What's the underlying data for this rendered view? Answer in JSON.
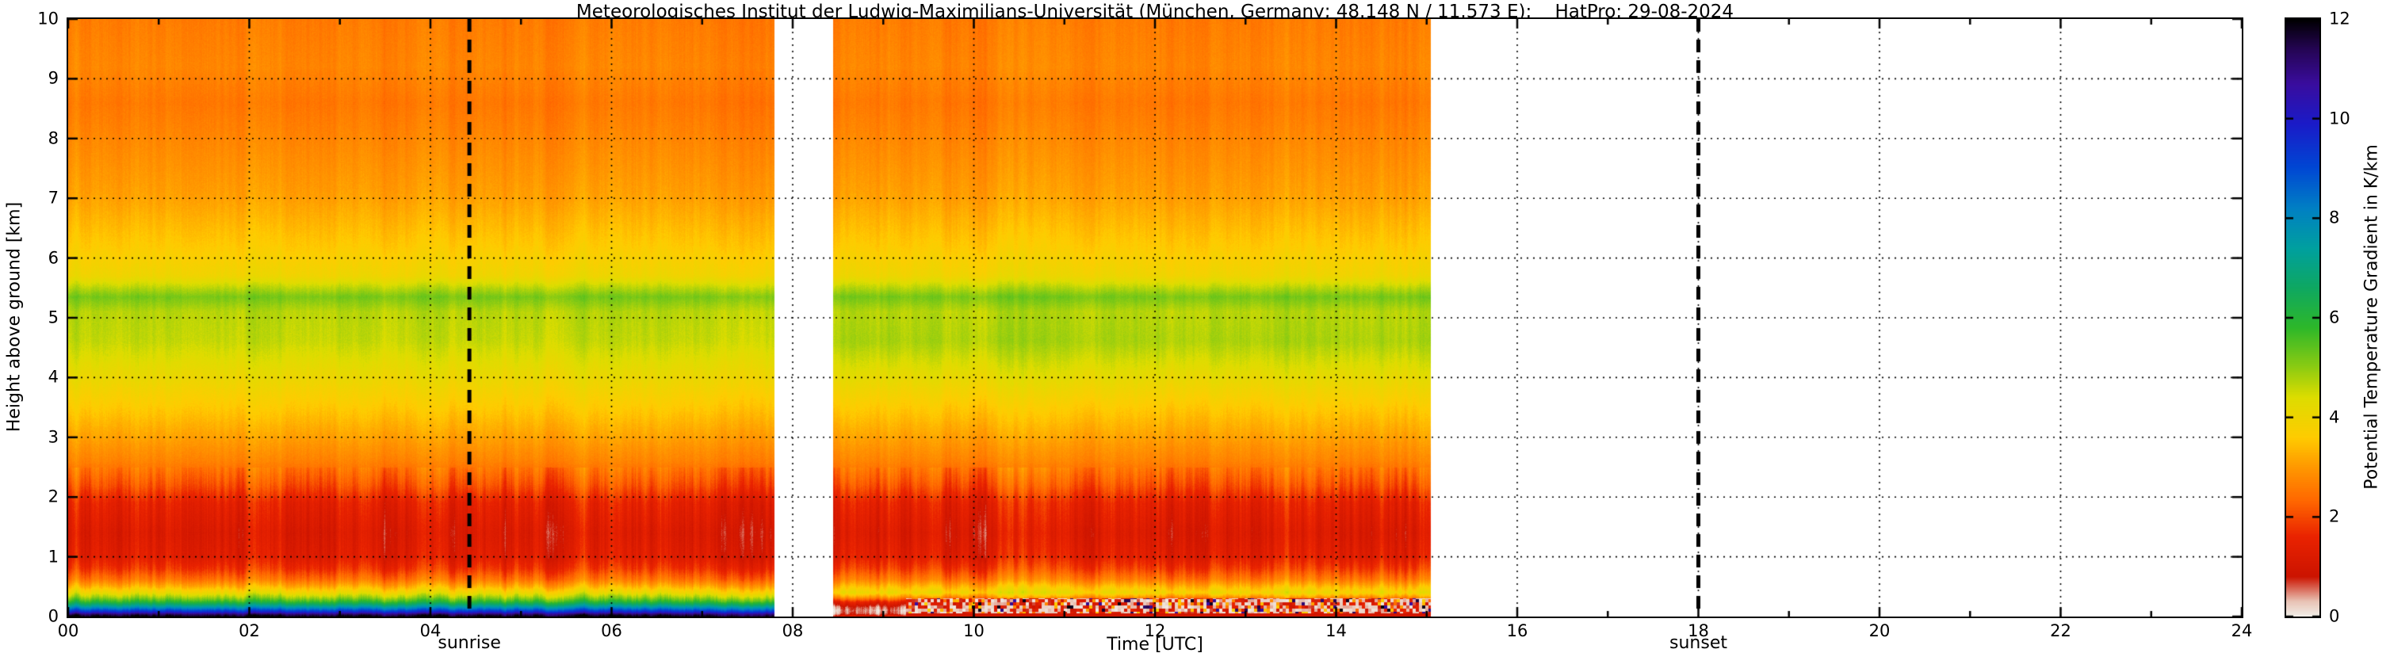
{
  "title": "Meteorologisches Institut der Ludwig-Maximilians-Universität (München, Germany; 48.148 N / 11.573 E):    HatPro: 29-08-2024",
  "chart_data": {
    "type": "heatmap",
    "title": "Meteorologisches Institut der Ludwig-Maximilians-Universität (München, Germany; 48.148 N / 11.573 E):    HatPro: 29-08-2024",
    "xlabel": "Time [UTC]",
    "ylabel": "Height above ground [km]",
    "colorbar_label": "Potential Temperature Gradient in K/km",
    "xlim": [
      0,
      24
    ],
    "ylim": [
      0,
      10
    ],
    "clim": [
      0,
      12
    ],
    "grid": {
      "style": "dotted",
      "color": "#000000"
    },
    "xticks": [
      0,
      2,
      4,
      6,
      8,
      10,
      12,
      14,
      16,
      18,
      20,
      22,
      24
    ],
    "xtick_labels": [
      "00",
      "02",
      "04",
      "06",
      "08",
      "10",
      "12",
      "14",
      "16",
      "18",
      "20",
      "22",
      "24"
    ],
    "yticks": [
      0,
      1,
      2,
      3,
      4,
      5,
      6,
      7,
      8,
      9,
      10
    ],
    "colorbar_ticks": [
      0,
      2,
      4,
      6,
      8,
      10,
      12
    ],
    "colormap_stops": [
      [
        0.0,
        "#f2efe9"
      ],
      [
        0.3,
        "#e9c4b6"
      ],
      [
        0.8,
        "#cc1400"
      ],
      [
        1.6,
        "#ea2300"
      ],
      [
        2.3,
        "#ff6600"
      ],
      [
        3.0,
        "#ff9900"
      ],
      [
        3.6,
        "#ffcc00"
      ],
      [
        4.4,
        "#dedd00"
      ],
      [
        5.0,
        "#8ecc12"
      ],
      [
        5.8,
        "#2eb82a"
      ],
      [
        6.6,
        "#0fa862"
      ],
      [
        7.4,
        "#00a0a0"
      ],
      [
        8.2,
        "#0080c4"
      ],
      [
        9.0,
        "#0048d4"
      ],
      [
        9.9,
        "#1b1bc8"
      ],
      [
        10.7,
        "#3a0d9e"
      ],
      [
        11.4,
        "#250553"
      ],
      [
        12.0,
        "#000000"
      ]
    ],
    "annotations": [
      {
        "label": "sunrise",
        "x": 4.43,
        "style": "dashed-vline"
      },
      {
        "label": "sunset",
        "x": 18.0,
        "style": "dashed-vline"
      }
    ],
    "segments": [
      {
        "t_start": 0.0,
        "t_end": 7.8,
        "heights": [
          0.0,
          0.04,
          0.08,
          0.13,
          0.18,
          0.25,
          0.32,
          0.4,
          0.5,
          0.62,
          0.8,
          1.0,
          1.4,
          1.9,
          2.2,
          2.6,
          3.0,
          3.5,
          4.0,
          4.6,
          5.1,
          5.35,
          5.7,
          6.2,
          7.0,
          8.0,
          8.6,
          9.2,
          10.0
        ],
        "values": [
          12.0,
          11.2,
          9.6,
          8.4,
          7.2,
          5.8,
          4.9,
          4.1,
          3.3,
          2.5,
          1.8,
          1.35,
          1.2,
          1.5,
          2.1,
          2.7,
          3.1,
          3.6,
          4.1,
          4.6,
          4.7,
          5.2,
          4.0,
          3.6,
          3.1,
          2.75,
          2.55,
          2.75,
          2.6
        ],
        "surface_speckle": false
      },
      {
        "t_start": 8.45,
        "t_end": 15.05,
        "heights": [
          0.0,
          0.05,
          0.1,
          0.16,
          0.24,
          0.32,
          0.4,
          0.5,
          0.62,
          0.8,
          1.0,
          1.4,
          1.9,
          2.2,
          2.6,
          3.0,
          3.5,
          4.0,
          4.6,
          5.1,
          5.35,
          5.7,
          6.2,
          7.0,
          8.0,
          8.6,
          9.2,
          10.0
        ],
        "values": [
          1.2,
          0.5,
          0.4,
          0.6,
          1.4,
          2.9,
          4.0,
          3.4,
          2.6,
          1.9,
          1.4,
          1.2,
          1.5,
          2.1,
          2.7,
          3.1,
          3.6,
          4.2,
          4.8,
          4.7,
          5.2,
          4.0,
          3.6,
          3.1,
          2.75,
          2.55,
          2.75,
          2.6
        ],
        "surface_speckle": true
      }
    ]
  }
}
